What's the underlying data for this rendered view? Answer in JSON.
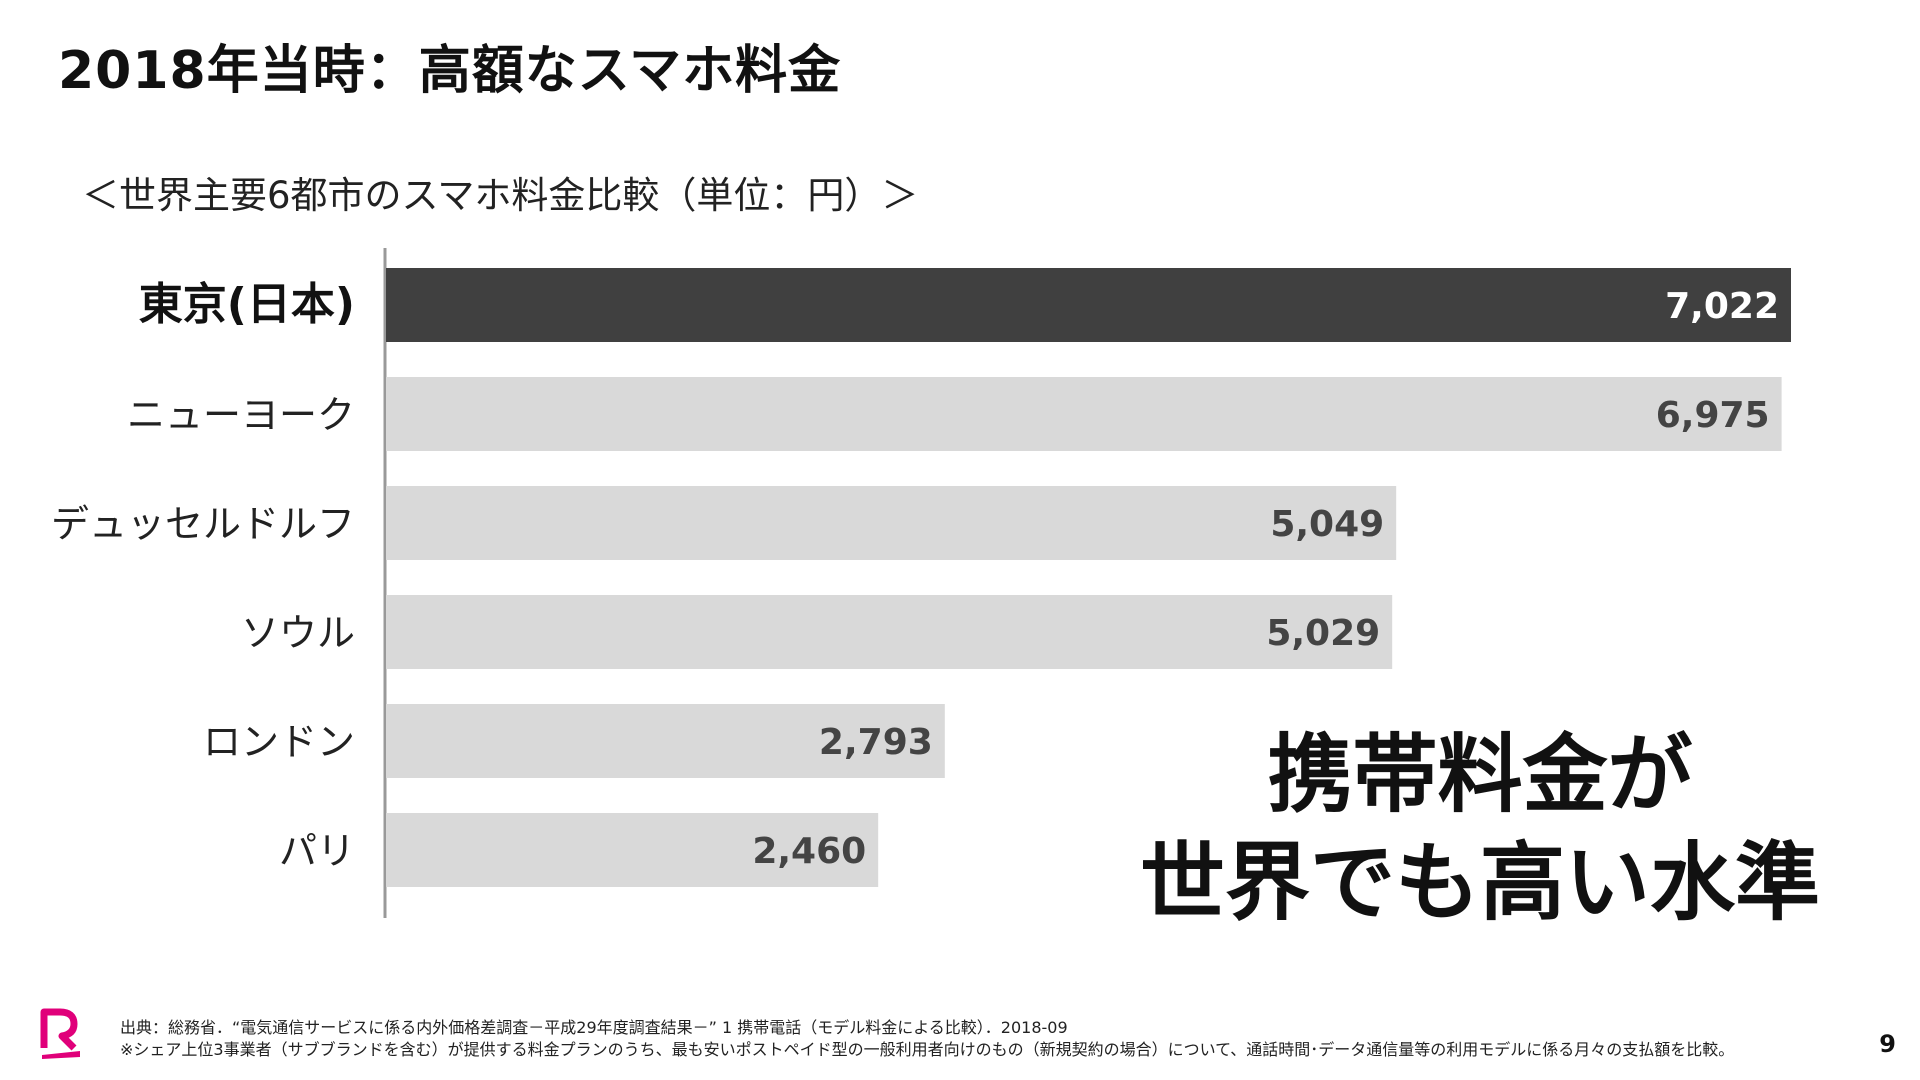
{
  "slide": {
    "title": "2018年当時：高額なスマホ料金",
    "subtitle": "＜世界主要6都市のスマホ料金比較（単位：円）＞",
    "message_line1": "携帯料金が",
    "message_line2": "世界でも高い水準",
    "footnote_1": "出典：総務省．“電気通信サービスに係る内外価格差調査－平成29年度調査結果－” 1 携帯電話（モデル料金による比較）．2018-09",
    "footnote_2": "※シェア上位3事業者（サブブランドを含む）が提供する料金プランのうち、最も安いポストペイド型の一般利用者向けのもの（新規契約の場合）について、通話時間･データ通信量等の利用モデルに係る月々の支払額を比較。",
    "page_number": "9",
    "logo_icon": "rakuten-r-logo"
  },
  "colors": {
    "highlight_bar": "#404040",
    "normal_bar": "#d9d9d9",
    "highlight_value": "#ffffff",
    "normal_value": "#444444",
    "logo": "#e0007a"
  },
  "chart_data": {
    "type": "bar",
    "orientation": "horizontal",
    "categories": [
      "東京(日本)",
      "ニューヨーク",
      "デュッセルドルフ",
      "ソウル",
      "ロンドン",
      "パリ"
    ],
    "values": [
      7022,
      6975,
      5049,
      5029,
      2793,
      2460
    ],
    "value_labels": [
      "7,022",
      "6,975",
      "5,049",
      "5,029",
      "2,793",
      "2,460"
    ],
    "highlight_index": 0,
    "xlim": [
      0,
      7022
    ]
  }
}
